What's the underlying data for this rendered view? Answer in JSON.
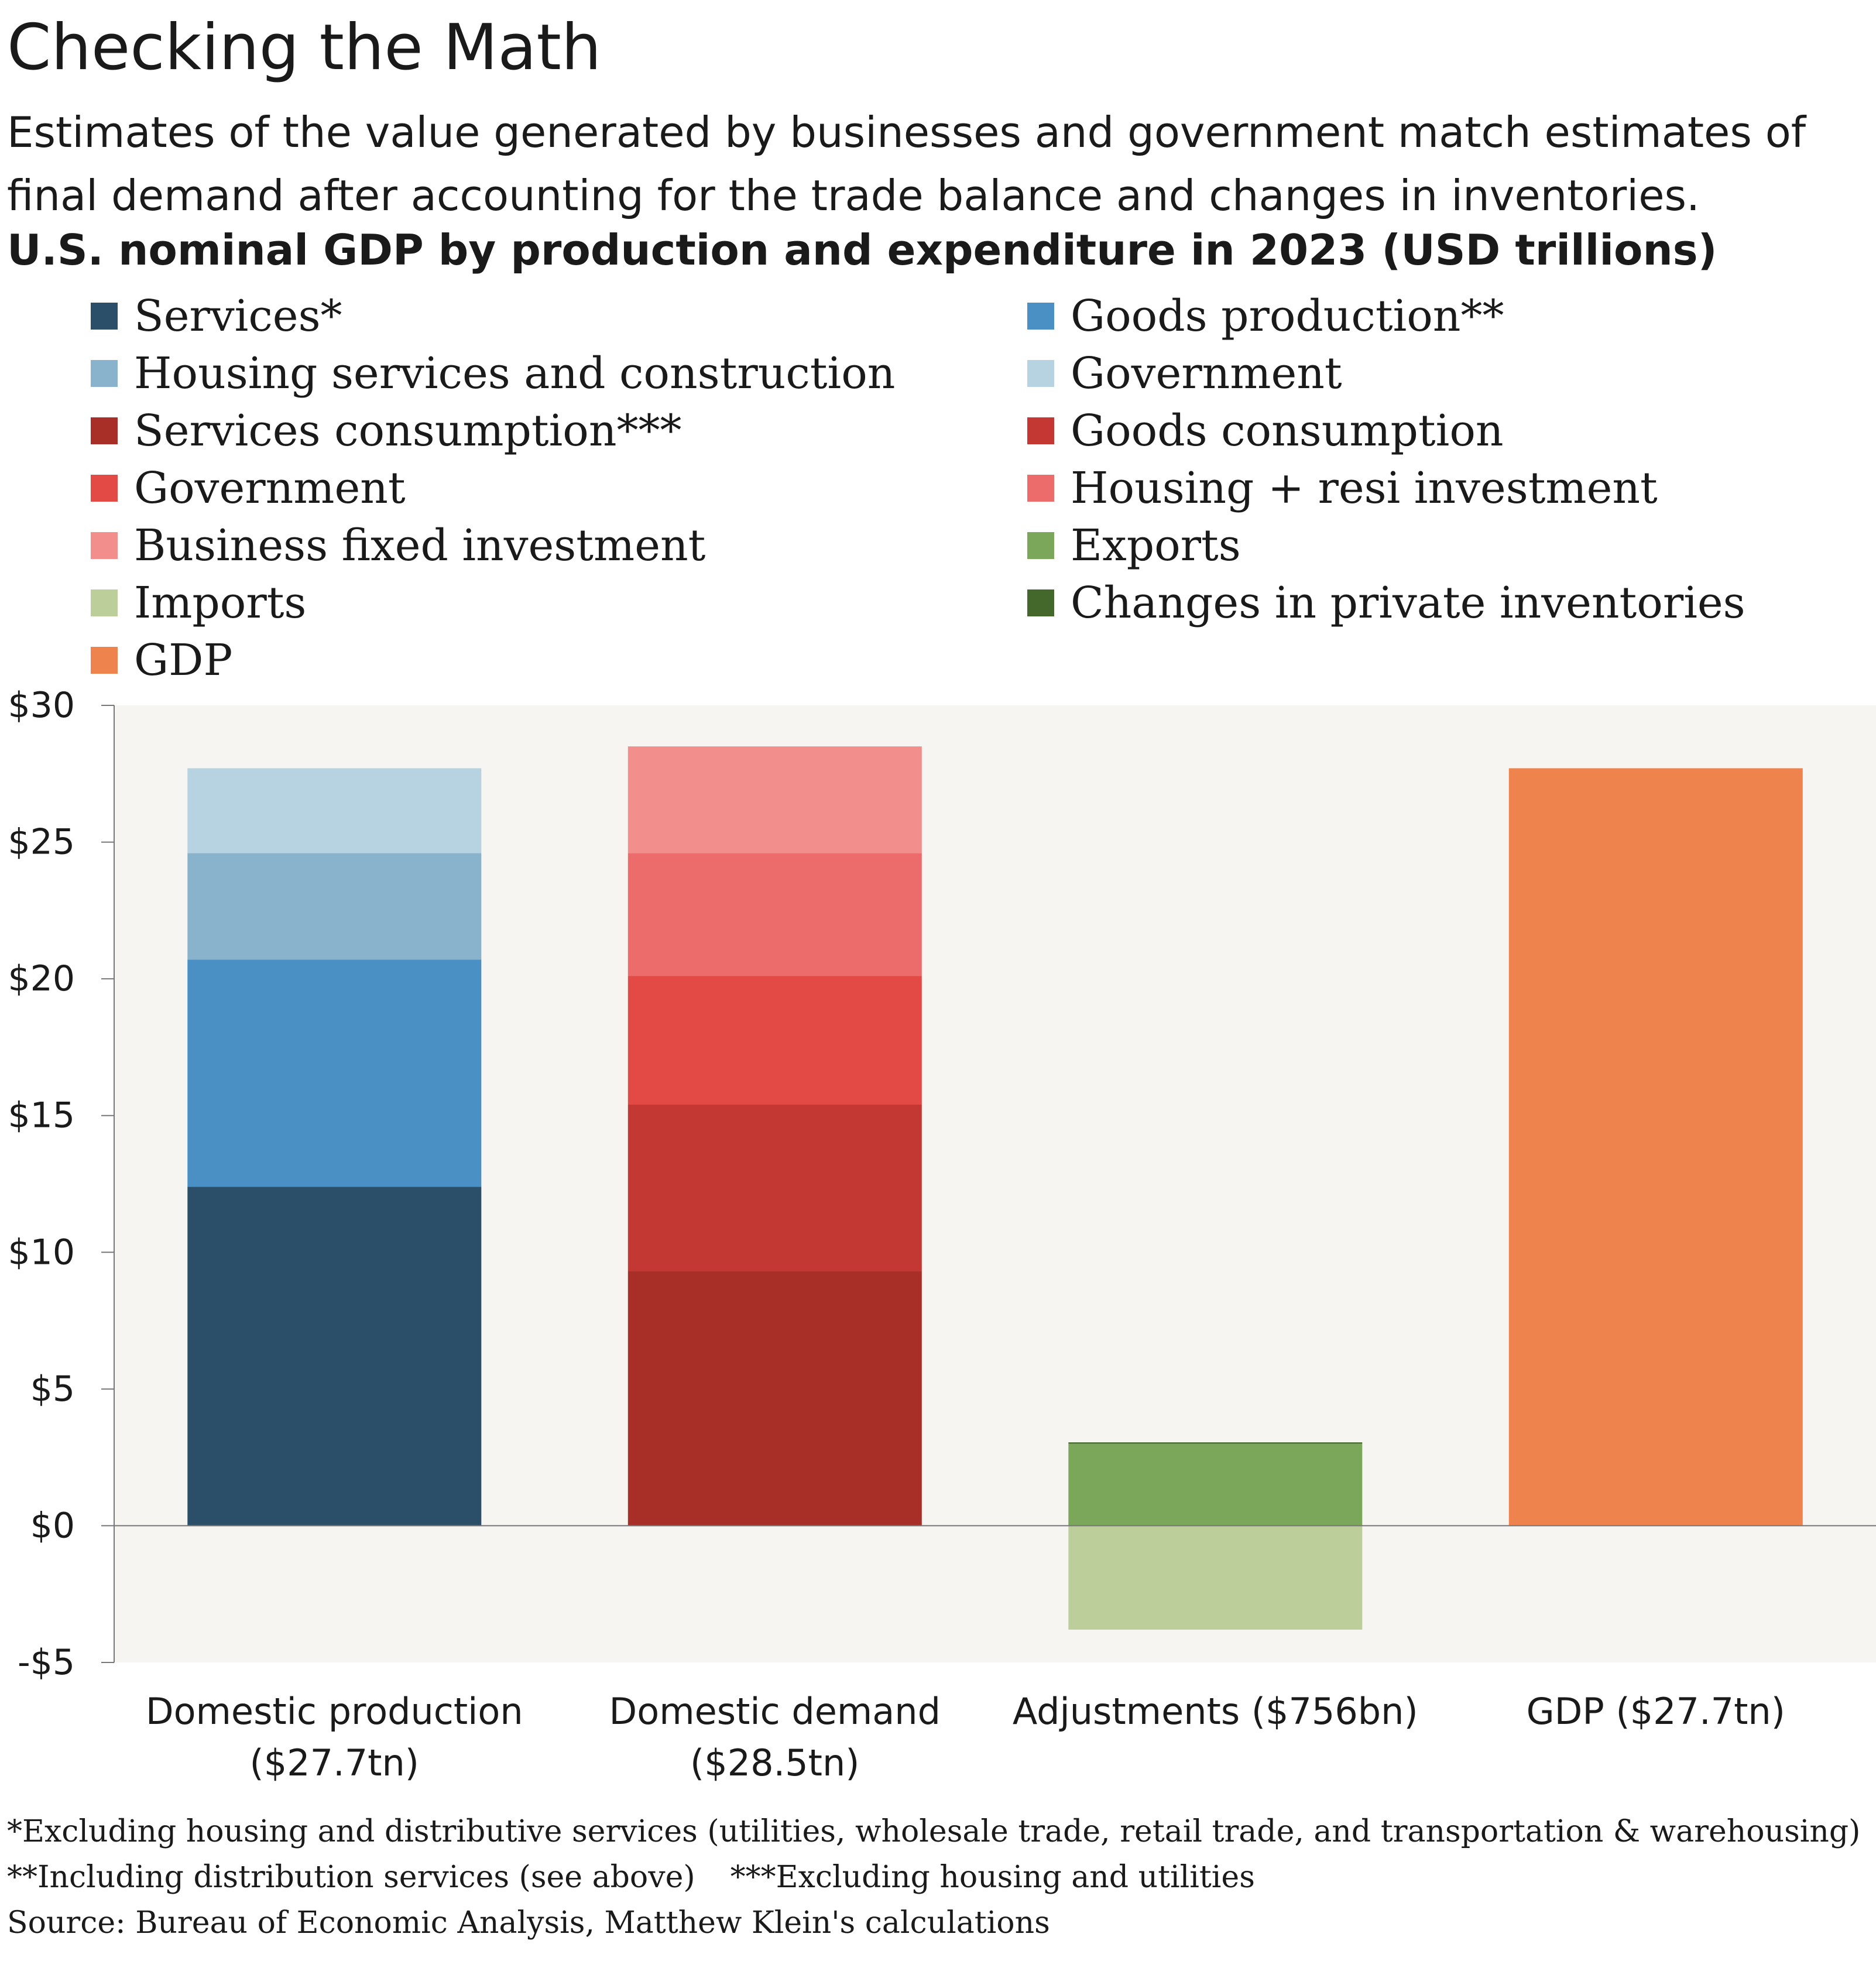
{
  "header": {
    "title": "Checking the Math",
    "subtitle": "Estimates of the value generated by businesses and government match estimates of final demand after accounting for the trade balance and changes in inventories.",
    "chart_heading": "U.S. nominal GDP by production and expenditure in 2023 (USD trillions)"
  },
  "legend": [
    {
      "label": "Services*",
      "color": "#2b4f69"
    },
    {
      "label": "Goods production**",
      "color": "#4a90c4"
    },
    {
      "label": "Housing services and construction",
      "color": "#89b3cd"
    },
    {
      "label": "Government",
      "color": "#b7d3e1"
    },
    {
      "label": "Services consumption***",
      "color": "#a82e28"
    },
    {
      "label": "Goods consumption",
      "color": "#c43833"
    },
    {
      "label": "Government",
      "color": "#e34a46"
    },
    {
      "label": "Housing + resi investment",
      "color": "#ec6b6b"
    },
    {
      "label": "Business fixed investment",
      "color": "#f28e8b"
    },
    {
      "label": "Exports",
      "color": "#7aa75a"
    },
    {
      "label": "Imports",
      "color": "#bccf9a"
    },
    {
      "label": "Changes in private inventories",
      "color": "#44682c"
    },
    {
      "label": "GDP",
      "color": "#ee834e"
    }
  ],
  "chart_data": {
    "type": "bar",
    "stacked": true,
    "categories": [
      "Domestic production ($27.7tn)",
      "Domestic demand ($28.5tn)",
      "Adjustments ($756bn)",
      "GDP ($27.7tn)"
    ],
    "category_label_lines": [
      [
        "Domestic production",
        "($27.7tn)"
      ],
      [
        "Domestic demand",
        "($28.5tn)"
      ],
      [
        "Adjustments ($756bn)"
      ],
      [
        "GDP ($27.7tn)"
      ]
    ],
    "series": [
      {
        "name": "Services*",
        "color": "#2b4f69",
        "values": [
          12.4,
          0,
          0,
          0
        ]
      },
      {
        "name": "Goods production**",
        "color": "#4a90c4",
        "values": [
          8.3,
          0,
          0,
          0
        ]
      },
      {
        "name": "Housing services and construction",
        "color": "#89b3cd",
        "values": [
          3.9,
          0,
          0,
          0
        ]
      },
      {
        "name": "Government",
        "color": "#b7d3e1",
        "values": [
          3.1,
          0,
          0,
          0
        ]
      },
      {
        "name": "Services consumption***",
        "color": "#a82e28",
        "values": [
          0,
          9.3,
          0,
          0
        ]
      },
      {
        "name": "Goods consumption",
        "color": "#c43833",
        "values": [
          0,
          6.1,
          0,
          0
        ]
      },
      {
        "name": "Government",
        "color": "#e34a46",
        "values": [
          0,
          4.7,
          0,
          0
        ]
      },
      {
        "name": "Housing + resi investment",
        "color": "#ec6b6b",
        "values": [
          0,
          4.5,
          0,
          0
        ]
      },
      {
        "name": "Business fixed investment",
        "color": "#f28e8b",
        "values": [
          0,
          3.9,
          0,
          0
        ]
      },
      {
        "name": "Exports",
        "color": "#7aa75a",
        "values": [
          0,
          0,
          3.0,
          0
        ]
      },
      {
        "name": "Imports",
        "color": "#bccf9a",
        "values": [
          0,
          0,
          -3.8,
          0
        ]
      },
      {
        "name": "Changes in private inventories",
        "color": "#44682c",
        "values": [
          0,
          0,
          0.05,
          0
        ]
      },
      {
        "name": "GDP",
        "color": "#ee834e",
        "values": [
          0,
          0,
          0,
          27.7
        ]
      }
    ],
    "ylim": [
      -5,
      30
    ],
    "yticks": [
      30,
      25,
      20,
      15,
      10,
      5,
      0,
      -5
    ],
    "ytick_labels": [
      "$30",
      "$25",
      "$20",
      "$15",
      "$10",
      "$5",
      "$0",
      "-$5"
    ],
    "grid": false,
    "legend_position": "top",
    "plot_background": "#f6f5f1"
  },
  "footnotes": {
    "line1": "*Excluding housing and distributive services (utilities, wholesale trade, retail trade, and transportation & warehousing)",
    "line2a": "**Including distribution services (see above)",
    "line2b": "***Excluding housing and utilities",
    "source": "Source: Bureau of Economic Analysis, Matthew Klein's calculations"
  }
}
